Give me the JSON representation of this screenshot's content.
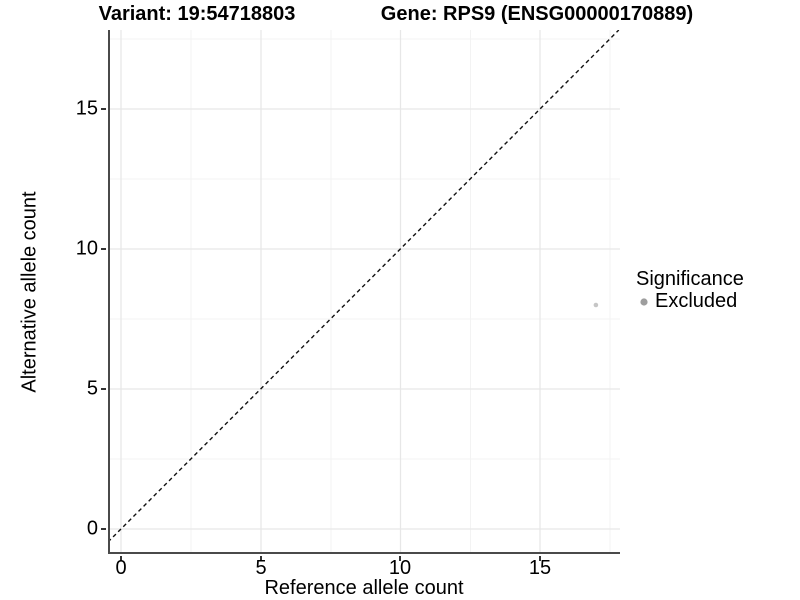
{
  "chart_data": {
    "type": "scatter",
    "title_left": "Variant: 19:54718803",
    "title_right": "Gene: RPS9 (ENSG00000170889)",
    "xlabel": "Reference allele count",
    "ylabel": "Alternative allele count",
    "x_ticks": [
      0,
      5,
      10,
      15
    ],
    "y_ticks": [
      0,
      5,
      10,
      15
    ],
    "x_tick_labels": [
      "0",
      "5",
      "10",
      "15"
    ],
    "y_tick_labels": [
      "0",
      "5",
      "10",
      "15"
    ],
    "xlim": [
      -0.47,
      17.9
    ],
    "ylim": [
      -0.9,
      17.8
    ],
    "grid": {
      "major": true,
      "minor": true
    },
    "points": [
      {
        "x": 17,
        "y": 8,
        "series": "Excluded",
        "color": "#c6c6c6"
      }
    ],
    "reference_line": {
      "type": "identity",
      "slope": 1,
      "intercept": 0,
      "style": "dashed",
      "color": "#000000"
    },
    "legend": {
      "title": "Significance",
      "position": "right",
      "items": [
        {
          "label": "Excluded",
          "color": "#9e9e9e"
        }
      ]
    }
  },
  "colors": {
    "background": "#ffffff",
    "grid_major": "#e7e7e7",
    "grid_minor": "#f3f3f3",
    "axis_line": "#4a4a4a",
    "text": "#000000"
  }
}
